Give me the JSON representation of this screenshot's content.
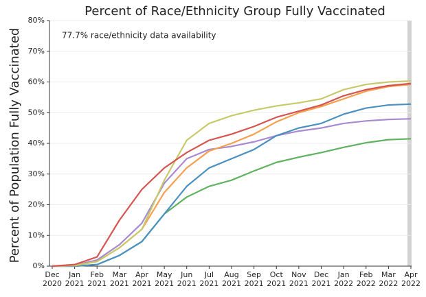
{
  "chart_data": {
    "type": "line",
    "title": "Percent of Race/Ethnicity Group Fully Vaccinated",
    "y_label": "Percent of Population Fully Vaccinated",
    "annotation": "77.7% race/ethnicity data availability",
    "categories": [
      "Dec 2020",
      "Jan 2021",
      "Feb 2021",
      "Mar 2021",
      "Apr 2021",
      "May 2021",
      "Jun 2021",
      "Jul 2021",
      "Aug 2021",
      "Sep 2021",
      "Oct 2021",
      "Nov 2021",
      "Dec 2021",
      "Jan 2022",
      "Feb 2022",
      "Mar 2022",
      "Apr 2022"
    ],
    "series": [
      {
        "color": "#5fb25f",
        "values": [
          0,
          0,
          0.5,
          3.5,
          8,
          17,
          22.5,
          26,
          28,
          31,
          33.8,
          35.5,
          37,
          38.7,
          40.2,
          41.2,
          41.5
        ]
      },
      {
        "color": "#a98ad0",
        "values": [
          0,
          0.3,
          2,
          7,
          14,
          27,
          35,
          38,
          39,
          40.5,
          42.5,
          44,
          45,
          46.5,
          47.3,
          47.8,
          48
        ]
      },
      {
        "color": "#4a90c0",
        "values": [
          0,
          0,
          0.5,
          3.5,
          8,
          17,
          26,
          32,
          35,
          38,
          42.5,
          45,
          46.5,
          49.5,
          51.5,
          52.5,
          52.8
        ]
      },
      {
        "color": "#f5a04f",
        "values": [
          0,
          0.2,
          1.5,
          6,
          12,
          24,
          32,
          37.5,
          40,
          43,
          47,
          50,
          52,
          54.5,
          57,
          58.5,
          59.2
        ]
      },
      {
        "color": "#c8c96a",
        "values": [
          0,
          0.2,
          1.5,
          6,
          12,
          28,
          41,
          46.5,
          49,
          50.8,
          52.2,
          53.2,
          54.5,
          57.5,
          59.2,
          60,
          60.3
        ]
      },
      {
        "color": "#d6544f",
        "values": [
          0,
          0.5,
          3,
          15,
          25,
          32,
          37,
          41,
          43,
          45.5,
          48.5,
          50.5,
          52.5,
          55.5,
          57.5,
          58.8,
          59.5
        ]
      }
    ],
    "ylim": [
      0,
      80
    ],
    "yticks": [
      {
        "value": 0,
        "label": "0%"
      },
      {
        "value": 10,
        "label": "10%"
      },
      {
        "value": 20,
        "label": "20%"
      },
      {
        "value": 30,
        "label": "30%"
      },
      {
        "value": 40,
        "label": "40%"
      },
      {
        "value": 50,
        "label": "50%"
      },
      {
        "value": 60,
        "label": "60%"
      },
      {
        "value": 70,
        "label": "70%"
      },
      {
        "value": 80,
        "label": "80%"
      }
    ],
    "grid": true
  }
}
